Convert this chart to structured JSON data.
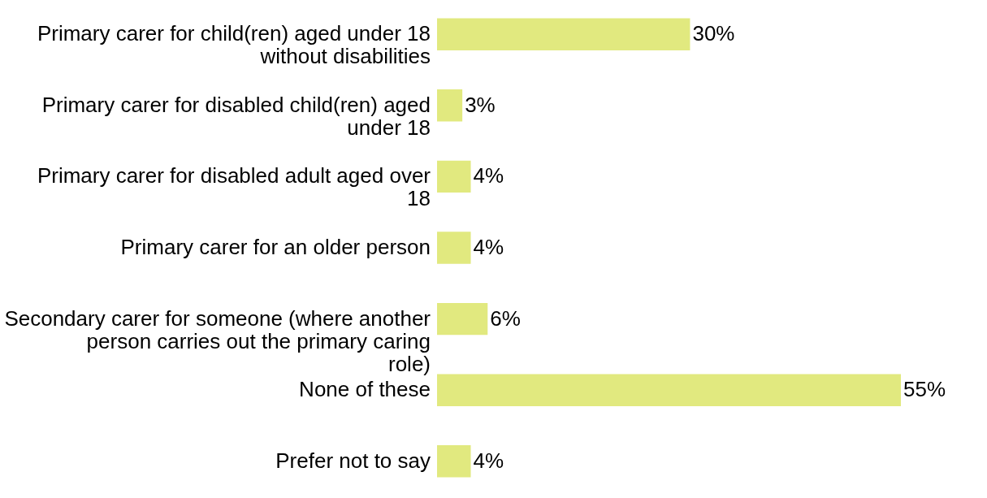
{
  "chart_data": {
    "type": "bar",
    "orientation": "horizontal",
    "categories": [
      "Primary carer for child(ren) aged under 18 without disabilities",
      "Primary carer for disabled child(ren) aged under 18",
      "Primary carer for disabled adult aged over 18",
      "Primary carer for an older person",
      "Secondary carer for someone (where another person carries out the primary caring role)",
      "None of these",
      "Prefer not to say"
    ],
    "values": [
      30,
      3,
      4,
      4,
      6,
      55,
      4
    ],
    "value_labels": [
      "30%",
      "3%",
      "4%",
      "4%",
      "6%",
      "55%",
      "4%"
    ],
    "color": "#e1e97f"
  }
}
